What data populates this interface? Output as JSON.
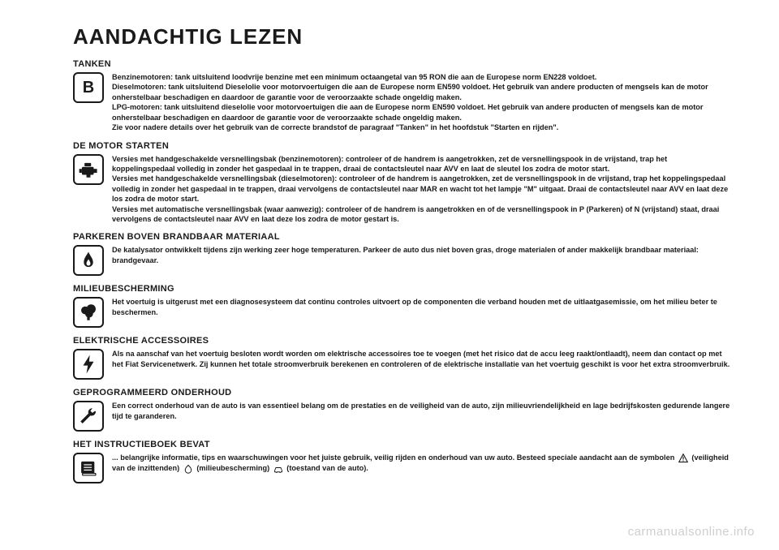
{
  "title": "AANDACHTIG LEZEN",
  "watermark": "carmanualsonline.info",
  "colors": {
    "text": "#1a1a1a",
    "bg": "#ffffff",
    "watermark": "#cfcfcf"
  },
  "typography": {
    "title_size_pt": 26,
    "section_title_size_pt": 11,
    "body_size_pt": 9.2,
    "body_weight": 700
  },
  "sections": [
    {
      "icon": "fuel-letter",
      "title": "TANKEN",
      "text": "Benzinemotoren: tank uitsluitend loodvrije benzine met een minimum octaangetal van 95 RON die aan de Europese norm EN228 voldoet.\nDieselmotoren: tank uitsluitend Dieselolie voor motorvoertuigen die aan de Europese norm EN590 voldoet. Het gebruik van andere producten of mengsels kan de motor onherstelbaar beschadigen en daardoor de garantie voor de veroorzaakte schade ongeldig maken.\nLPG-motoren: tank uitsluitend dieselolie voor motorvoertuigen die aan de Europese norm EN590 voldoet. Het gebruik van andere producten of mengsels kan de motor onherstelbaar beschadigen en daardoor de garantie voor de veroorzaakte schade ongeldig maken.\nZie voor nadere details over het gebruik van de correcte brandstof de paragraaf \"Tanken\" in het hoofdstuk \"Starten en rijden\"."
    },
    {
      "icon": "engine",
      "title": "DE MOTOR STARTEN",
      "text": "Versies met handgeschakelde versnellingsbak (benzinemotoren): controleer of de handrem is aangetrokken, zet de versnellingspook in de vrijstand, trap het koppelingspedaal volledig in zonder het gaspedaal in te trappen, draai de contactsleutel naar AVV en laat de sleutel los zodra de motor start.\nVersies met handgeschakelde versnellingsbak (dieselmotoren): controleer of de handrem is aangetrokken, zet de versnellingspook in de vrijstand, trap het koppelingspedaal volledig in zonder het gaspedaal in te trappen, draai vervolgens de contactsleutel naar MAR en wacht tot het lampje \"M\" uitgaat. Draai de contactsleutel naar AVV en laat deze los zodra de motor start.\nVersies met automatische versnellingsbak (waar aanwezig): controleer of de handrem is aangetrokken en of de versnellingspook in P (Parkeren) of N (vrijstand) staat, draai vervolgens de contactsleutel naar AVV en laat deze los zodra de motor gestart is."
    },
    {
      "icon": "flame",
      "title": "PARKEREN BOVEN BRANDBAAR MATERIAAL",
      "text": "De katalysator ontwikkelt tijdens zijn werking zeer hoge temperaturen. Parkeer de auto dus niet boven gras, droge materialen of ander makkelijk brandbaar materiaal: brandgevaar."
    },
    {
      "icon": "tree",
      "title": "MILIEUBESCHERMING",
      "text": "Het voertuig is uitgerust met een diagnosesysteem dat continu controles uitvoert op de componenten die verband houden met de uitlaatgasemissie, om het milieu beter te beschermen."
    },
    {
      "icon": "bolt",
      "title": "ELEKTRISCHE ACCESSOIRES",
      "text": "Als na aanschaf van het voertuig besloten wordt worden om elektrische accessoires toe te voegen (met het risico dat de accu leeg raakt/ontlaadt), neem dan contact op met het Fiat Servicenetwerk. Zij kunnen het totale stroomverbruik berekenen en controleren of de elektrische installatie van het voertuig geschikt is voor het extra stroomverbruik."
    },
    {
      "icon": "wrench",
      "title": "GEPROGRAMMEERD ONDERHOUD",
      "text": "Een correct onderhoud van de auto is van essentieel belang om de prestaties en de veiligheid van de auto, zijn milieuvriendelijkheid en lage bedrijfskosten gedurende langere tijd te garanderen."
    },
    {
      "icon": "book",
      "title": "HET INSTRUCTIEBOEK BEVAT",
      "text": "... belangrijke informatie, tips en waarschuwingen voor het juiste gebruik, veilig rijden en onderhoud van uw auto. Besteed speciale aandacht aan de symbolen {warn} (veiligheid van de inzittenden) {env} (milieubescherming) {car} (toestand van de auto)."
    }
  ]
}
